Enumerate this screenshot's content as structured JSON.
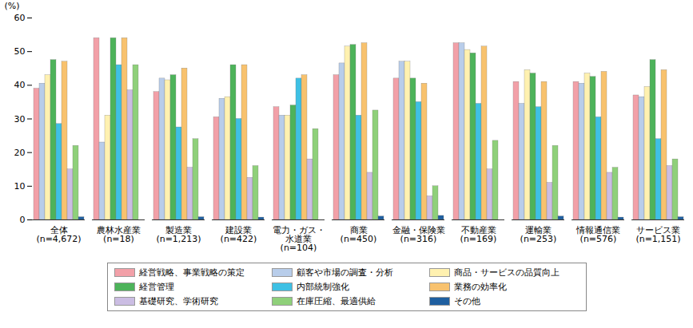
{
  "chart_data": {
    "type": "bar",
    "y_label": "(%)",
    "categories": [
      "全体\n(n=4,672)",
      "農林水産業\n(n=18)",
      "製造業\n(n=1,213)",
      "建設業\n(n=422)",
      "電力・ガス・\n水道業\n(n=104)",
      "商業\n(n=450)",
      "金融・保険業\n(n=316)",
      "不動産業\n(n=169)",
      "運輸業\n(n=253)",
      "情報通信業\n(n=576)",
      "サービス業\n(n=1,151)"
    ],
    "series": [
      {
        "name": "経営戦略、事業戦略の策定",
        "color": "#f2a0a8",
        "values": [
          39,
          54,
          38,
          30.5,
          33.5,
          43,
          42,
          52.5,
          41,
          41,
          37
        ]
      },
      {
        "name": "顧客や市場の調査・分析",
        "color": "#b8cdea",
        "values": [
          40.5,
          23,
          42,
          36,
          31,
          46.5,
          47,
          52.5,
          34.5,
          40.5,
          36.5
        ]
      },
      {
        "name": "商品・サービスの品質向上",
        "color": "#fff1b0",
        "values": [
          43,
          31,
          41.5,
          36.5,
          31,
          51.5,
          47,
          50.5,
          44.5,
          43.5,
          39.5
        ]
      },
      {
        "name": "経営管理",
        "color": "#4db35a",
        "values": [
          47.5,
          54,
          43,
          46,
          34,
          52,
          42,
          49.5,
          43.5,
          42.5,
          47.5
        ]
      },
      {
        "name": "内部統制強化",
        "color": "#3ec0e4",
        "values": [
          28.5,
          46,
          27.5,
          30,
          42,
          31,
          35,
          34.5,
          33.5,
          30.5,
          24
        ]
      },
      {
        "name": "業務の効率化",
        "color": "#f8c26e",
        "values": [
          47,
          54,
          45,
          46,
          43,
          52.5,
          40.5,
          51.5,
          41,
          44,
          44.5
        ]
      },
      {
        "name": "基礎研究、学術研究",
        "color": "#cbbde3",
        "values": [
          15,
          38.5,
          15.5,
          12.5,
          18,
          14,
          7,
          15,
          11,
          14,
          16
        ]
      },
      {
        "name": "在庫圧縮、最適供給",
        "color": "#8fd07a",
        "values": [
          22,
          46,
          24,
          16,
          27,
          32.5,
          10,
          23.5,
          22,
          15.5,
          18
        ]
      },
      {
        "name": "その他",
        "color": "#1f5fa0",
        "values": [
          0.8,
          0,
          0.8,
          0.7,
          0,
          1,
          1.2,
          0,
          1,
          0.7,
          0.8
        ]
      }
    ],
    "ylim": [
      0,
      60
    ],
    "yticks": [
      0,
      10,
      20,
      30,
      40,
      50,
      60
    ],
    "grid": false,
    "legend": "bottom"
  }
}
